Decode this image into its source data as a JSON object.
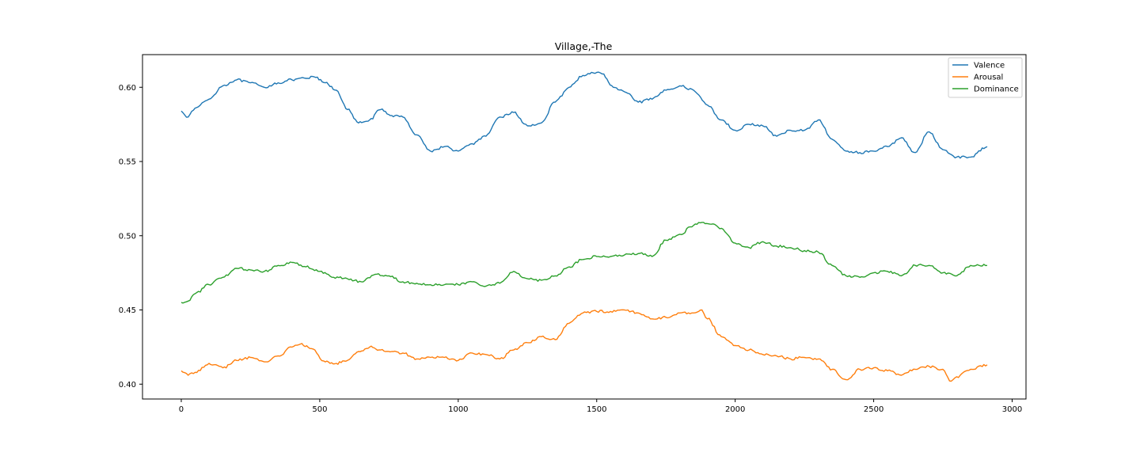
{
  "chart_data": {
    "type": "line",
    "title": "Village,-The",
    "xlabel": "",
    "ylabel": "",
    "xlim": [
      -140,
      3050
    ],
    "ylim": [
      0.39,
      0.622
    ],
    "x_ticks": [
      0,
      500,
      1000,
      1500,
      2000,
      2500,
      3000
    ],
    "y_ticks": [
      0.4,
      0.45,
      0.5,
      0.55,
      0.6
    ],
    "x_tick_labels": [
      "0",
      "500",
      "1000",
      "1500",
      "2000",
      "2500",
      "3000"
    ],
    "y_tick_labels": [
      "0.40",
      "0.45",
      "0.50",
      "0.55",
      "0.60"
    ],
    "grid": false,
    "legend_position": "top-right",
    "series": [
      {
        "name": "Valence",
        "color": "#1f77b4",
        "x": [
          0,
          25,
          50,
          100,
          150,
          200,
          250,
          300,
          350,
          400,
          450,
          480,
          520,
          560,
          600,
          640,
          680,
          720,
          760,
          800,
          850,
          900,
          950,
          1000,
          1050,
          1100,
          1150,
          1200,
          1250,
          1300,
          1350,
          1400,
          1450,
          1500,
          1520,
          1560,
          1600,
          1650,
          1700,
          1750,
          1800,
          1850,
          1900,
          1950,
          2000,
          2050,
          2100,
          2150,
          2200,
          2250,
          2300,
          2350,
          2400,
          2450,
          2500,
          2550,
          2600,
          2650,
          2700,
          2750,
          2800,
          2850,
          2910
        ],
        "values": [
          0.584,
          0.58,
          0.586,
          0.592,
          0.601,
          0.605,
          0.603,
          0.6,
          0.603,
          0.605,
          0.606,
          0.607,
          0.603,
          0.598,
          0.585,
          0.576,
          0.578,
          0.585,
          0.581,
          0.58,
          0.568,
          0.557,
          0.56,
          0.557,
          0.562,
          0.567,
          0.58,
          0.583,
          0.574,
          0.576,
          0.59,
          0.6,
          0.608,
          0.61,
          0.609,
          0.6,
          0.597,
          0.59,
          0.592,
          0.598,
          0.601,
          0.598,
          0.588,
          0.578,
          0.571,
          0.575,
          0.574,
          0.567,
          0.571,
          0.571,
          0.578,
          0.565,
          0.557,
          0.556,
          0.557,
          0.56,
          0.566,
          0.556,
          0.57,
          0.558,
          0.553,
          0.553,
          0.56
        ]
      },
      {
        "name": "Arousal",
        "color": "#ff7f0e",
        "x": [
          0,
          25,
          50,
          100,
          150,
          200,
          250,
          300,
          350,
          400,
          430,
          470,
          520,
          560,
          600,
          640,
          680,
          720,
          760,
          800,
          850,
          900,
          950,
          1000,
          1050,
          1100,
          1150,
          1200,
          1250,
          1300,
          1350,
          1400,
          1450,
          1500,
          1550,
          1600,
          1650,
          1700,
          1750,
          1800,
          1850,
          1880,
          1900,
          1950,
          2000,
          2050,
          2100,
          2150,
          2200,
          2250,
          2300,
          2350,
          2400,
          2450,
          2500,
          2550,
          2600,
          2650,
          2700,
          2750,
          2780,
          2800,
          2850,
          2910
        ],
        "values": [
          0.409,
          0.406,
          0.408,
          0.414,
          0.411,
          0.416,
          0.418,
          0.415,
          0.419,
          0.425,
          0.427,
          0.424,
          0.415,
          0.414,
          0.416,
          0.422,
          0.425,
          0.423,
          0.422,
          0.421,
          0.417,
          0.418,
          0.418,
          0.416,
          0.421,
          0.42,
          0.417,
          0.423,
          0.428,
          0.432,
          0.43,
          0.441,
          0.448,
          0.449,
          0.449,
          0.45,
          0.448,
          0.444,
          0.445,
          0.448,
          0.448,
          0.45,
          0.444,
          0.432,
          0.426,
          0.423,
          0.42,
          0.419,
          0.417,
          0.418,
          0.417,
          0.41,
          0.403,
          0.41,
          0.411,
          0.409,
          0.406,
          0.41,
          0.412,
          0.41,
          0.402,
          0.405,
          0.41,
          0.413
        ]
      },
      {
        "name": "Dominance",
        "color": "#2ca02c",
        "x": [
          0,
          25,
          50,
          100,
          150,
          200,
          250,
          300,
          350,
          400,
          450,
          500,
          550,
          600,
          650,
          700,
          750,
          800,
          850,
          900,
          950,
          1000,
          1050,
          1100,
          1150,
          1200,
          1250,
          1300,
          1350,
          1400,
          1450,
          1500,
          1550,
          1600,
          1650,
          1700,
          1750,
          1800,
          1850,
          1880,
          1920,
          1950,
          2000,
          2050,
          2100,
          2150,
          2200,
          2250,
          2300,
          2350,
          2400,
          2450,
          2500,
          2550,
          2600,
          2650,
          2700,
          2750,
          2800,
          2850,
          2910
        ],
        "values": [
          0.455,
          0.456,
          0.461,
          0.467,
          0.472,
          0.478,
          0.477,
          0.476,
          0.48,
          0.482,
          0.479,
          0.476,
          0.472,
          0.471,
          0.469,
          0.474,
          0.473,
          0.469,
          0.468,
          0.467,
          0.467,
          0.467,
          0.469,
          0.466,
          0.468,
          0.476,
          0.471,
          0.47,
          0.473,
          0.479,
          0.484,
          0.486,
          0.486,
          0.487,
          0.488,
          0.486,
          0.497,
          0.501,
          0.507,
          0.509,
          0.508,
          0.505,
          0.495,
          0.492,
          0.496,
          0.493,
          0.492,
          0.49,
          0.489,
          0.48,
          0.473,
          0.472,
          0.475,
          0.476,
          0.473,
          0.48,
          0.48,
          0.475,
          0.473,
          0.48,
          0.48
        ]
      }
    ]
  }
}
